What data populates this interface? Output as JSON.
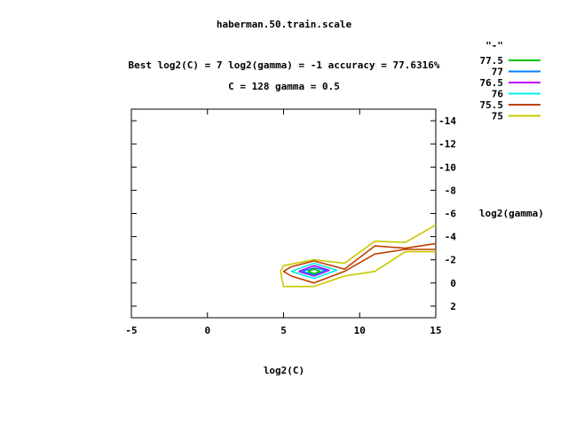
{
  "chart_data": {
    "type": "contour",
    "title": "haberman.50.train.scale",
    "subtitle_lines": [
      "Best log2(C) = 7  log2(gamma) = -1  accuracy = 77.6316%",
      "C = 128  gamma = 0.5"
    ],
    "xlabel": "log2(C)",
    "ylabel": "log2(gamma)",
    "xlim": [
      -5,
      15
    ],
    "ylim": [
      -15,
      3
    ],
    "y_reversed": true,
    "xticks": [
      -5,
      0,
      5,
      10,
      15
    ],
    "yticks": [
      -14,
      -12,
      -10,
      -8,
      -6,
      -4,
      -2,
      0,
      2
    ],
    "grid": false,
    "legend": {
      "title": "\"-\"",
      "placement": "top-right",
      "entries": [
        {
          "label": "77.5",
          "color": "#00c000"
        },
        {
          "label": "77",
          "color": "#0080ff"
        },
        {
          "label": "76.5",
          "color": "#c000ff"
        },
        {
          "label": "76",
          "color": "#00eeee"
        },
        {
          "label": "75.5",
          "color": "#c04000"
        },
        {
          "label": "75",
          "color": "#c8c800"
        }
      ]
    },
    "series": [
      {
        "name": "75",
        "color": "#c8c800",
        "segments": [
          [
            [
              15,
              -5
            ],
            [
              13,
              -3.5
            ],
            [
              11,
              -3.6
            ],
            [
              9,
              -1.7
            ],
            [
              7,
              -2
            ],
            [
              5,
              -1.5
            ],
            [
              4.8,
              -1
            ],
            [
              5,
              0.3
            ],
            [
              7,
              0.3
            ],
            [
              9,
              -0.6
            ],
            [
              11,
              -1
            ],
            [
              13,
              -2.7
            ],
            [
              15,
              -2.7
            ]
          ]
        ]
      },
      {
        "name": "75.5",
        "color": "#c04000",
        "segments": [
          [
            [
              15,
              -3.4
            ],
            [
              13,
              -3
            ],
            [
              11,
              -3.2
            ],
            [
              9,
              -1.2
            ],
            [
              7,
              -1.9
            ],
            [
              5.5,
              -1.4
            ],
            [
              5,
              -1
            ],
            [
              5.5,
              -0.6
            ],
            [
              7,
              0
            ],
            [
              9,
              -1
            ],
            [
              11,
              -2.5
            ],
            [
              13,
              -2.9
            ],
            [
              15,
              -2.9
            ]
          ]
        ]
      },
      {
        "name": "76",
        "color": "#00eeee",
        "segments": [
          [
            [
              5.5,
              -1
            ],
            [
              7,
              -1.7
            ],
            [
              8.5,
              -1.1
            ],
            [
              7,
              -0.4
            ],
            [
              5.5,
              -1
            ]
          ]
        ]
      },
      {
        "name": "76.5",
        "color": "#c000ff",
        "segments": [
          [
            [
              6,
              -1
            ],
            [
              7,
              -1.5
            ],
            [
              8,
              -1.1
            ],
            [
              7,
              -0.6
            ],
            [
              6,
              -1
            ]
          ]
        ]
      },
      {
        "name": "77",
        "color": "#0080ff",
        "segments": [
          [
            [
              6.2,
              -1
            ],
            [
              7,
              -1.3
            ],
            [
              7.8,
              -1.1
            ],
            [
              7,
              -0.7
            ],
            [
              6.2,
              -1
            ]
          ]
        ]
      },
      {
        "name": "77.5",
        "color": "#00c000",
        "segments": [
          [
            [
              6.6,
              -1
            ],
            [
              7,
              -1.2
            ],
            [
              7.4,
              -1
            ],
            [
              7,
              -0.8
            ],
            [
              6.6,
              -1
            ]
          ]
        ]
      }
    ]
  }
}
